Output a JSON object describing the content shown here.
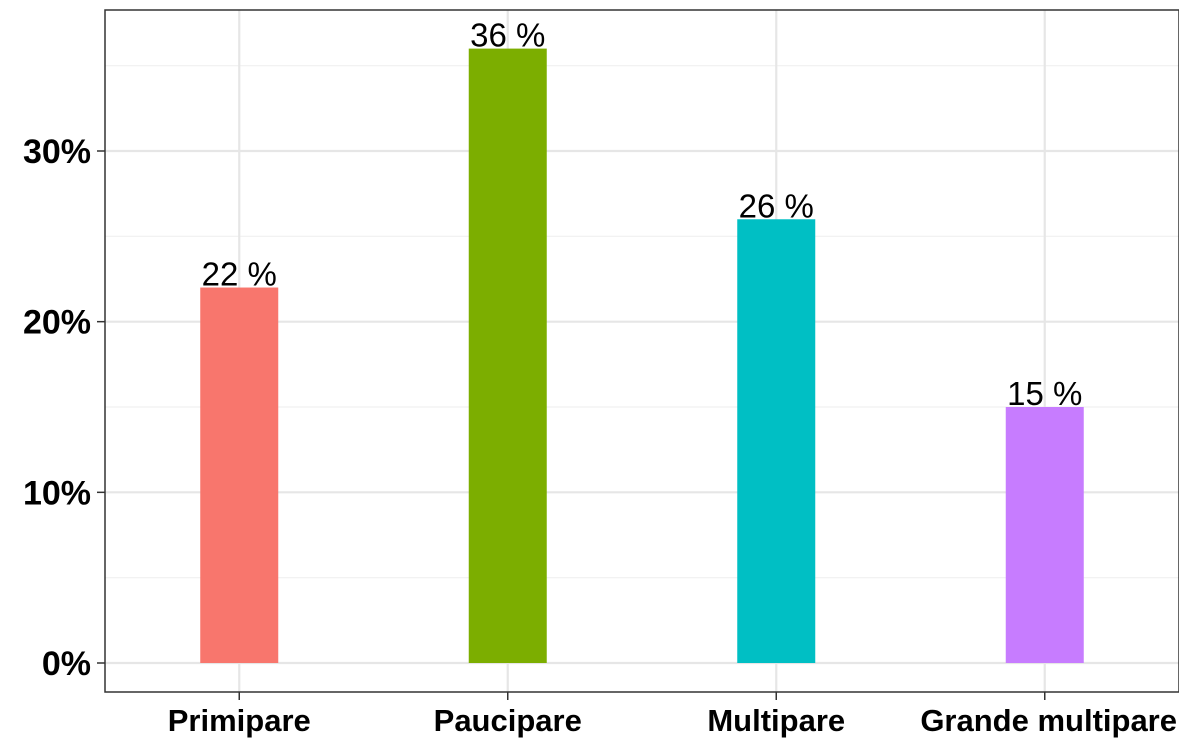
{
  "chart_data": {
    "type": "bar",
    "title": "",
    "xlabel": "",
    "ylabel": "",
    "categories": [
      "Primipare",
      "Paucipare",
      "Multipare",
      "Grande multipare"
    ],
    "values": [
      22,
      36,
      26,
      15
    ],
    "value_labels": [
      "22 %",
      "36 %",
      "26 %",
      "15 %"
    ],
    "colors": [
      "#F8766D",
      "#7CAE00",
      "#00BFC4",
      "#C77CFF"
    ],
    "ylim": [
      0,
      38
    ],
    "y_ticks": [
      0,
      10,
      20,
      30
    ],
    "y_tick_labels": [
      "0%",
      "10%",
      "20%",
      "30%"
    ],
    "grid": true,
    "legend": "none"
  }
}
